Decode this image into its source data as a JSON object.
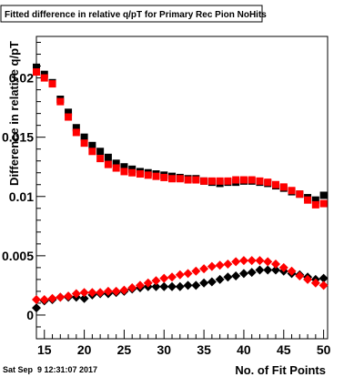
{
  "timestamp": "Sat Sep  9 12:31:07 2017",
  "chart_data": {
    "type": "scatter",
    "title": "Fitted difference in relative q/pT for Primary Rec Pion NoHits",
    "xlabel": "No. of Fit Points",
    "ylabel": "Difference in relative q/pT",
    "xlim": [
      14,
      50.5
    ],
    "ylim": [
      -0.002,
      0.0235
    ],
    "x_ticks": [
      15,
      20,
      25,
      30,
      35,
      40,
      45,
      50
    ],
    "x_tick_labels": [
      "15",
      "20",
      "25",
      "30",
      "35",
      "40",
      "45",
      "50"
    ],
    "y_ticks": [
      0,
      0.005,
      0.01,
      0.015,
      0.02
    ],
    "y_tick_labels": [
      "0",
      "0.005",
      "0.01",
      "0.015",
      "0.02"
    ],
    "grid": false,
    "legend": "none",
    "series": [
      {
        "color": "#000000",
        "marker": "square",
        "x": [
          14,
          15,
          16,
          17,
          18,
          19,
          20,
          21,
          22,
          23,
          24,
          25,
          26,
          27,
          28,
          29,
          30,
          31,
          32,
          33,
          34,
          35,
          36,
          37,
          38,
          39,
          40,
          41,
          42,
          43,
          44,
          45,
          46,
          47,
          48,
          49,
          50
        ],
        "y": [
          0.0209,
          0.0203,
          0.0196,
          0.0182,
          0.0171,
          0.0158,
          0.015,
          0.0143,
          0.0138,
          0.0133,
          0.0128,
          0.0125,
          0.0123,
          0.0121,
          0.012,
          0.0119,
          0.0118,
          0.0117,
          0.0116,
          0.0115,
          0.0115,
          0.0113,
          0.0112,
          0.0111,
          0.0112,
          0.0112,
          0.0113,
          0.0113,
          0.0112,
          0.0111,
          0.0109,
          0.0107,
          0.0104,
          0.0102,
          0.0099,
          0.0097,
          0.0101
        ]
      },
      {
        "color": "#ff0000",
        "marker": "square",
        "x": [
          14,
          15,
          16,
          17,
          18,
          19,
          20,
          21,
          22,
          23,
          24,
          25,
          26,
          27,
          28,
          29,
          30,
          31,
          32,
          33,
          34,
          35,
          36,
          37,
          38,
          39,
          40,
          41,
          42,
          43,
          44,
          45,
          46,
          47,
          48,
          49,
          50
        ],
        "y": [
          0.0205,
          0.02,
          0.0195,
          0.018,
          0.0167,
          0.0154,
          0.0145,
          0.0138,
          0.0132,
          0.0127,
          0.0124,
          0.0121,
          0.012,
          0.0119,
          0.0118,
          0.0117,
          0.0116,
          0.0115,
          0.0115,
          0.0114,
          0.0114,
          0.0113,
          0.0113,
          0.0113,
          0.0113,
          0.0114,
          0.0114,
          0.0114,
          0.0113,
          0.0112,
          0.011,
          0.0108,
          0.0105,
          0.0102,
          0.0097,
          0.0093,
          0.0094
        ]
      },
      {
        "color": "#000000",
        "marker": "diamond",
        "x": [
          14,
          15,
          16,
          17,
          18,
          19,
          20,
          21,
          22,
          23,
          24,
          25,
          26,
          27,
          28,
          29,
          30,
          31,
          32,
          33,
          34,
          35,
          36,
          37,
          38,
          39,
          40,
          41,
          42,
          43,
          44,
          45,
          46,
          47,
          48,
          49,
          50
        ],
        "y": [
          0.0006,
          0.0012,
          0.0013,
          0.0015,
          0.0015,
          0.0015,
          0.0014,
          0.0017,
          0.0018,
          0.0018,
          0.0019,
          0.002,
          0.0022,
          0.0023,
          0.0024,
          0.0024,
          0.0024,
          0.0024,
          0.0024,
          0.0025,
          0.0025,
          0.0027,
          0.0028,
          0.003,
          0.0032,
          0.0033,
          0.0035,
          0.0036,
          0.0038,
          0.0038,
          0.0038,
          0.0037,
          0.0035,
          0.0034,
          0.0032,
          0.003,
          0.0031
        ]
      },
      {
        "color": "#ff0000",
        "marker": "diamond",
        "x": [
          14,
          15,
          16,
          17,
          18,
          19,
          20,
          21,
          22,
          23,
          24,
          25,
          26,
          27,
          28,
          29,
          30,
          31,
          32,
          33,
          34,
          35,
          36,
          37,
          38,
          39,
          40,
          41,
          42,
          43,
          44,
          45,
          46,
          47,
          48,
          49,
          50
        ],
        "y": [
          0.0013,
          0.0013,
          0.0014,
          0.0015,
          0.0016,
          0.0018,
          0.0019,
          0.0019,
          0.0019,
          0.002,
          0.002,
          0.0021,
          0.0023,
          0.0025,
          0.0027,
          0.0029,
          0.0031,
          0.0032,
          0.0034,
          0.0035,
          0.0037,
          0.0039,
          0.0041,
          0.0042,
          0.0043,
          0.0045,
          0.0046,
          0.0046,
          0.0046,
          0.0045,
          0.0043,
          0.004,
          0.0037,
          0.0033,
          0.003,
          0.0027,
          0.0025
        ]
      }
    ]
  }
}
